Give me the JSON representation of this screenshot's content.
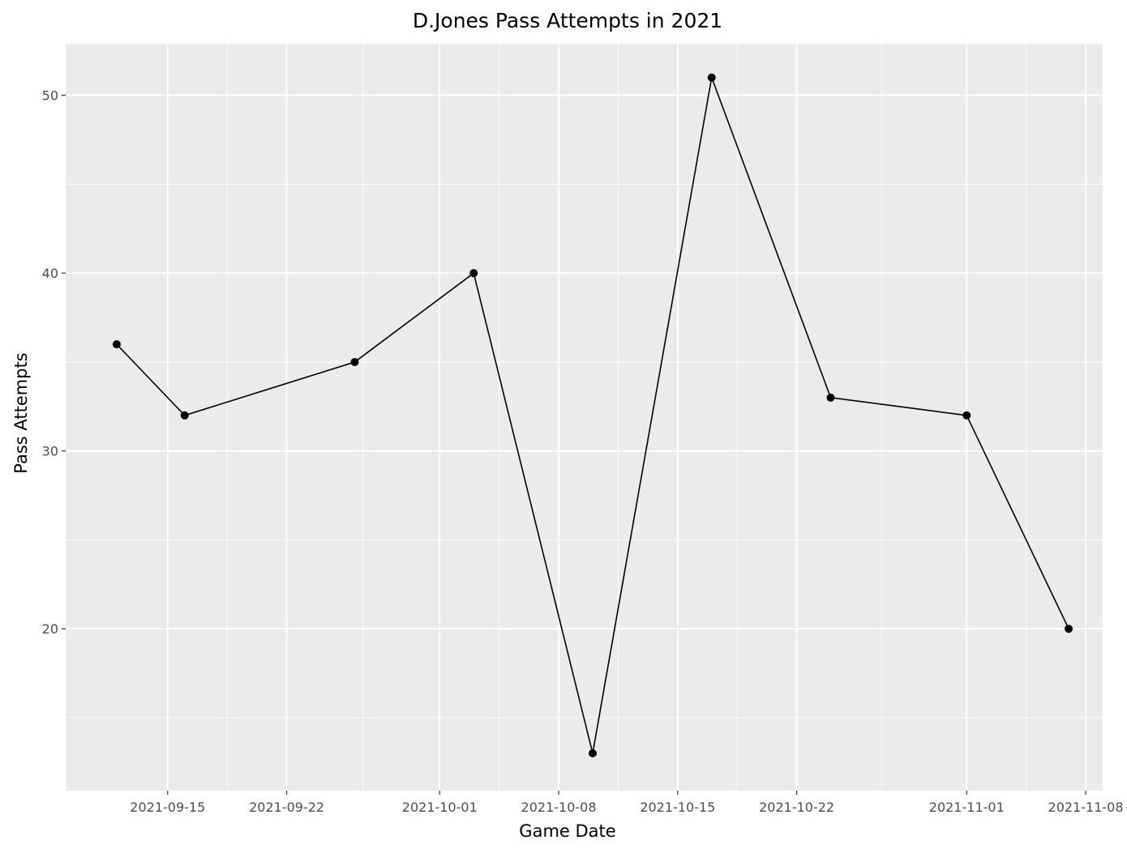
{
  "chart_data": {
    "type": "line",
    "title": "D.Jones Pass Attempts in 2021",
    "xlabel": "Game Date",
    "ylabel": "Pass Attempts",
    "x_type": "date",
    "x_ticks": [
      "2021-09-15",
      "2021-09-22",
      "2021-10-01",
      "2021-10-08",
      "2021-10-15",
      "2021-10-22",
      "2021-11-01",
      "2021-11-08"
    ],
    "y_ticks": [
      20,
      30,
      40,
      50
    ],
    "xlim": [
      "2021-09-09",
      "2021-11-09"
    ],
    "ylim": [
      10.9,
      52.9
    ],
    "grid": true,
    "series": [
      {
        "x": [
          "2021-09-12",
          "2021-09-16",
          "2021-09-26",
          "2021-10-03",
          "2021-10-10",
          "2021-10-17",
          "2021-10-24",
          "2021-11-01",
          "2021-11-07"
        ],
        "y": [
          36,
          32,
          35,
          40,
          13,
          51,
          33,
          32,
          20
        ]
      }
    ]
  },
  "colors": {
    "panel_background": "#ebebeb",
    "grid_line": "#ffffff",
    "line": "#000000",
    "point": "#000000"
  }
}
